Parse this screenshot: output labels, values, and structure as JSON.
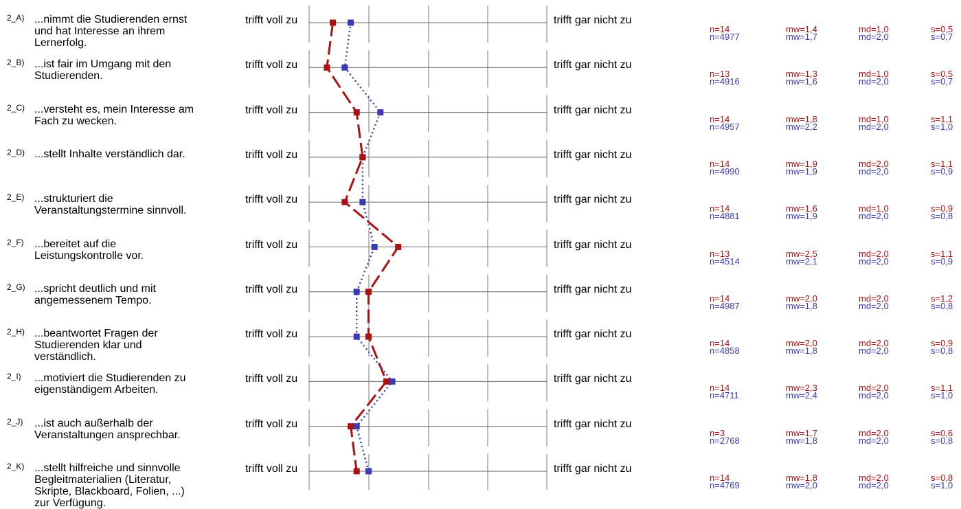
{
  "chart_data": {
    "type": "line",
    "scale_left": "trifft voll zu",
    "scale_right": "trifft gar nicht zu",
    "xlim": [
      1,
      5
    ],
    "items": [
      {
        "code": "2_A)",
        "text": "...nimmt die Studierenden ernst und hat Interesse an ihrem Lernerfolg.",
        "red": {
          "n": "n=14",
          "mw": "mw=1,4",
          "md": "md=1,0",
          "s": "s=0,5"
        },
        "blue": {
          "n": "n=4977",
          "mw": "mw=1,7",
          "md": "md=2,0",
          "s": "s=0,7"
        }
      },
      {
        "code": "2_B)",
        "text": "...ist fair im Umgang mit den Studierenden.",
        "red": {
          "n": "n=13",
          "mw": "mw=1,3",
          "md": "md=1,0",
          "s": "s=0,5"
        },
        "blue": {
          "n": "n=4916",
          "mw": "mw=1,6",
          "md": "md=2,0",
          "s": "s=0,7"
        }
      },
      {
        "code": "2_C)",
        "text": "...versteht es, mein Interesse am Fach zu wecken.",
        "red": {
          "n": "n=14",
          "mw": "mw=1,8",
          "md": "md=1,0",
          "s": "s=1,1"
        },
        "blue": {
          "n": "n=4957",
          "mw": "mw=2,2",
          "md": "md=2,0",
          "s": "s=1,0"
        }
      },
      {
        "code": "2_D)",
        "text": "...stellt Inhalte verständlich dar.",
        "red": {
          "n": "n=14",
          "mw": "mw=1,9",
          "md": "md=2,0",
          "s": "s=1,1"
        },
        "blue": {
          "n": "n=4990",
          "mw": "mw=1,9",
          "md": "md=2,0",
          "s": "s=0,9"
        }
      },
      {
        "code": "2_E)",
        "text": "...strukturiert die Veranstaltungstermine sinnvoll.",
        "red": {
          "n": "n=14",
          "mw": "mw=1,6",
          "md": "md=1,0",
          "s": "s=0,9"
        },
        "blue": {
          "n": "n=4881",
          "mw": "mw=1,9",
          "md": "md=2,0",
          "s": "s=0,8"
        }
      },
      {
        "code": "2_F)",
        "text": "...bereitet auf die Leistungskontrolle vor.",
        "red": {
          "n": "n=13",
          "mw": "mw=2,5",
          "md": "md=2,0",
          "s": "s=1,1"
        },
        "blue": {
          "n": "n=4514",
          "mw": "mw=2,1",
          "md": "md=2,0",
          "s": "s=0,9"
        }
      },
      {
        "code": "2_G)",
        "text": "...spricht deutlich und mit angemessenem Tempo.",
        "red": {
          "n": "n=14",
          "mw": "mw=2,0",
          "md": "md=2,0",
          "s": "s=1,2"
        },
        "blue": {
          "n": "n=4987",
          "mw": "mw=1,8",
          "md": "md=2,0",
          "s": "s=0,8"
        }
      },
      {
        "code": "2_H)",
        "text": "...beantwortet Fragen der Studierenden klar und verständlich.",
        "red": {
          "n": "n=14",
          "mw": "mw=2,0",
          "md": "md=2,0",
          "s": "s=0,9"
        },
        "blue": {
          "n": "n=4858",
          "mw": "mw=1,8",
          "md": "md=2,0",
          "s": "s=0,8"
        }
      },
      {
        "code": "2_I)",
        "text": "...motiviert die Studierenden zu eigenständigem Arbeiten.",
        "red": {
          "n": "n=14",
          "mw": "mw=2,3",
          "md": "md=2,0",
          "s": "s=1,1"
        },
        "blue": {
          "n": "n=4711",
          "mw": "mw=2,4",
          "md": "md=2,0",
          "s": "s=1,0"
        }
      },
      {
        "code": "2_J)",
        "text": "...ist auch außerhalb der Veranstaltungen ansprechbar.",
        "red": {
          "n": "n=3",
          "mw": "mw=1,7",
          "md": "md=2,0",
          "s": "s=0,6"
        },
        "blue": {
          "n": "n=2768",
          "mw": "mw=1,8",
          "md": "md=2,0",
          "s": "s=0,8"
        }
      },
      {
        "code": "2_K)",
        "text": "...stellt hilfreiche und sinnvolle Begleitmaterialien (Literatur, Skripte, Blackboard, Folien, ...) zur Verfügung.",
        "red": {
          "n": "n=14",
          "mw": "mw=1,8",
          "md": "md=2,0",
          "s": "s=0,8"
        },
        "blue": {
          "n": "n=4769",
          "mw": "mw=2,0",
          "md": "md=2,0",
          "s": "s=1,0"
        }
      }
    ],
    "series": [
      {
        "values": [
          1.4,
          1.3,
          1.8,
          1.9,
          1.6,
          2.5,
          2.0,
          2.0,
          2.3,
          1.7,
          1.8
        ],
        "color": "#aa1111",
        "style": "dashed"
      },
      {
        "values": [
          1.7,
          1.6,
          2.2,
          1.9,
          1.9,
          2.1,
          1.8,
          1.8,
          2.4,
          1.8,
          2.0
        ],
        "color": "#3a3ab4",
        "style": "dotted"
      }
    ]
  }
}
